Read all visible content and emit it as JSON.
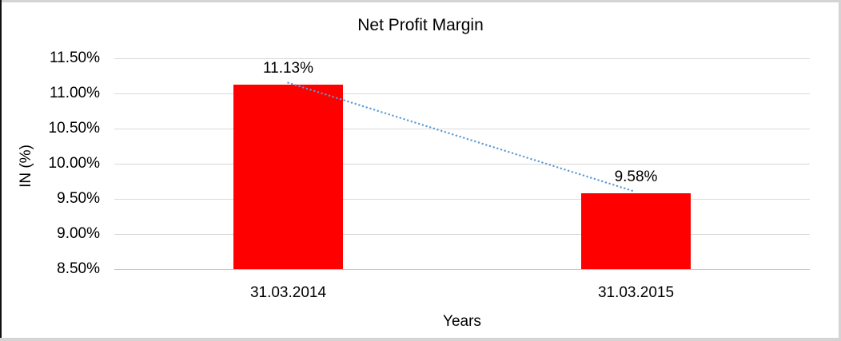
{
  "chart_data": {
    "type": "bar",
    "title": "Net Profit Margin",
    "xlabel": "Years",
    "ylabel": "IN (%)",
    "categories": [
      "31.03.2014",
      "31.03.2015"
    ],
    "values": [
      11.13,
      9.58
    ],
    "data_labels": [
      "11.13%",
      "9.58%"
    ],
    "y_ticks": [
      {
        "value": 11.5,
        "label": "11.50%"
      },
      {
        "value": 11.0,
        "label": "11.00%"
      },
      {
        "value": 10.5,
        "label": "10.50%"
      },
      {
        "value": 10.0,
        "label": "10.00%"
      },
      {
        "value": 9.5,
        "label": "9.50%"
      },
      {
        "value": 9.0,
        "label": "9.00%"
      },
      {
        "value": 8.5,
        "label": "8.50%"
      }
    ],
    "ylim": [
      8.5,
      11.5
    ],
    "grid": true,
    "legend": "none",
    "bar_color": "#ff0000",
    "trendline": {
      "type": "linear",
      "style": "dotted",
      "color": "#5b9bd5",
      "from_value": 11.13,
      "to_value": 9.58
    }
  },
  "colors": {
    "background": "#ffffff",
    "gridline": "#d9d9d9",
    "axis_line": "#c6c6c6",
    "text": "#000000",
    "frame_left": "#111111",
    "frame_gray": "#d4d4d4"
  }
}
